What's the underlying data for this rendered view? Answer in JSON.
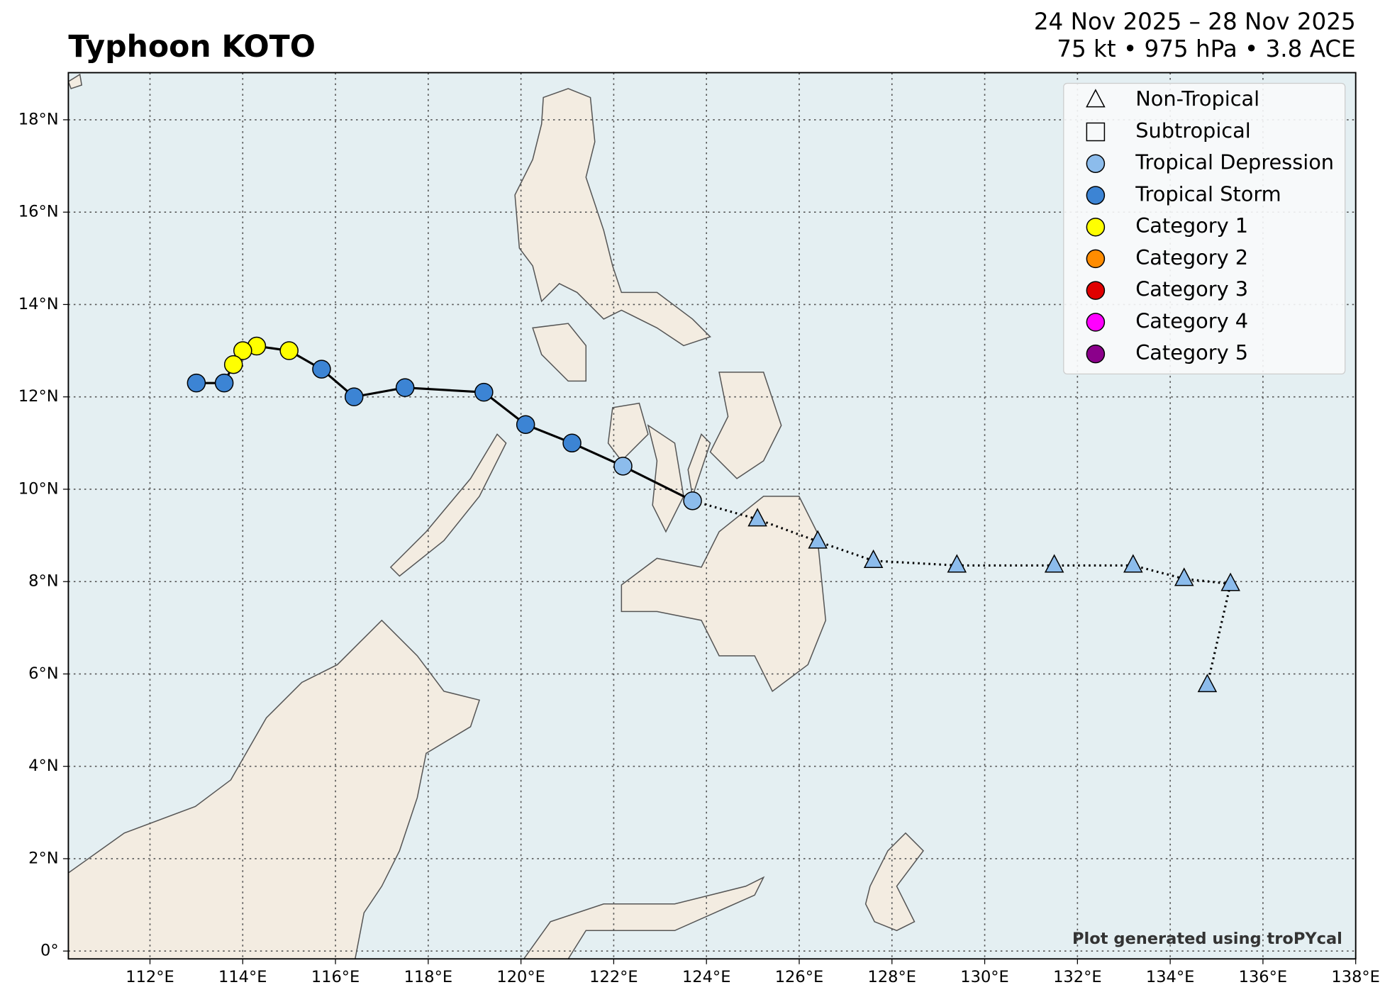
{
  "chart_data": {
    "type": "track",
    "title": "Typhoon KOTO",
    "subtitle": [
      "24 Nov 2025 – 28 Nov 2025",
      "75 kt • 975 hPa • 3.8 ACE"
    ],
    "footnote": "Plot generated using troPYcal",
    "xlim": [
      110.24,
      138
    ],
    "ylim": [
      -0.17,
      19.02
    ],
    "xticks": [
      {
        "value": 112,
        "label": "112°E"
      },
      {
        "value": 114,
        "label": "114°E"
      },
      {
        "value": 116,
        "label": "116°E"
      },
      {
        "value": 118,
        "label": "118°E"
      },
      {
        "value": 120,
        "label": "120°E"
      },
      {
        "value": 122,
        "label": "122°E"
      },
      {
        "value": 124,
        "label": "124°E"
      },
      {
        "value": 126,
        "label": "126°E"
      },
      {
        "value": 128,
        "label": "128°E"
      },
      {
        "value": 130,
        "label": "130°E"
      },
      {
        "value": 132,
        "label": "132°E"
      },
      {
        "value": 134,
        "label": "134°E"
      },
      {
        "value": 136,
        "label": "136°E"
      },
      {
        "value": 138,
        "label": "138°E"
      }
    ],
    "yticks": [
      {
        "value": 0,
        "label": "0°"
      },
      {
        "value": 2,
        "label": "2°N"
      },
      {
        "value": 4,
        "label": "4°N"
      },
      {
        "value": 6,
        "label": "6°N"
      },
      {
        "value": 8,
        "label": "8°N"
      },
      {
        "value": 10,
        "label": "10°N"
      },
      {
        "value": 12,
        "label": "12°N"
      },
      {
        "value": 14,
        "label": "14°N"
      },
      {
        "value": 16,
        "label": "16°N"
      },
      {
        "value": 18,
        "label": "18°N"
      }
    ],
    "grid": true,
    "legend_position": "upper right",
    "legend": [
      {
        "name": "Non-Tropical",
        "marker": "triangle",
        "color": "none"
      },
      {
        "name": "Subtropical",
        "marker": "square",
        "color": "none"
      },
      {
        "name": "Tropical Depression",
        "marker": "circle",
        "color": "#8cbcec"
      },
      {
        "name": "Tropical Storm",
        "marker": "circle",
        "color": "#3c84d4"
      },
      {
        "name": "Category 1",
        "marker": "circle",
        "color": "#ffff00"
      },
      {
        "name": "Category 2",
        "marker": "circle",
        "color": "#ff8c00"
      },
      {
        "name": "Category 3",
        "marker": "circle",
        "color": "#e00000"
      },
      {
        "name": "Category 4",
        "marker": "circle",
        "color": "#ff00ff"
      },
      {
        "name": "Category 5",
        "marker": "circle",
        "color": "#8b008b"
      }
    ],
    "lon": [
      134.8,
      135.3,
      134.3,
      133.2,
      131.5,
      129.4,
      127.6,
      126.4,
      125.1,
      123.7,
      122.2,
      121.1,
      120.1,
      119.2,
      117.5,
      116.4,
      115.7,
      115.0,
      114.3,
      114.0,
      113.8,
      113.6,
      113.0
    ],
    "lat": [
      5.76,
      7.95,
      8.06,
      8.35,
      8.35,
      8.35,
      8.45,
      8.87,
      9.35,
      9.75,
      10.5,
      11.0,
      11.4,
      12.1,
      12.2,
      12.0,
      12.6,
      13.0,
      13.1,
      13.0,
      12.7,
      12.3,
      12.3
    ],
    "marker": [
      "triangle",
      "triangle",
      "triangle",
      "triangle",
      "triangle",
      "triangle",
      "triangle",
      "triangle",
      "triangle",
      "circle",
      "circle",
      "circle",
      "circle",
      "circle",
      "circle",
      "circle",
      "circle",
      "circle",
      "circle",
      "circle",
      "circle",
      "circle",
      "circle"
    ],
    "intensity": [
      2,
      2,
      2,
      2,
      2,
      2,
      2,
      2,
      2,
      2,
      2,
      3,
      3,
      3,
      3,
      3,
      3,
      4,
      4,
      4,
      4,
      3,
      3
    ]
  }
}
